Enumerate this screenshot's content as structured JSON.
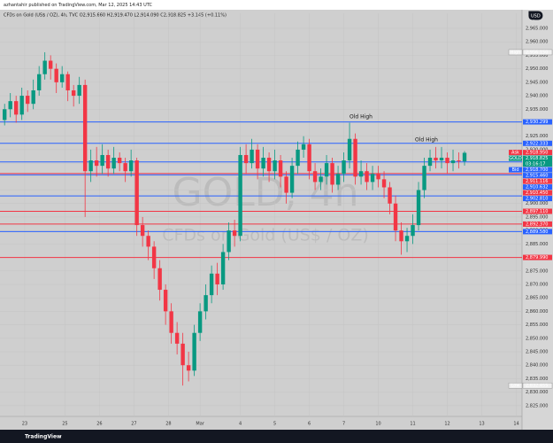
{
  "chart_data": {
    "type": "candlestick",
    "publisher_line": "azhantahir published on TradingView.com, Mar 12, 2025 14:43 UTC",
    "legend_line": "CFDs on Gold (US$ / OZ), 4h, TVC  O2,915.660 H2,919.470 L2,914.090 C2,918.825 +3.145 (+0.11%)",
    "watermark_symbol": "GOLD, 4h",
    "watermark_name": "CFDs on Gold (US$ / OZ)",
    "currency": "USD",
    "annotations": [
      "Old High",
      "Old High"
    ],
    "footer_brand": "TradingView",
    "up_color": "#089981",
    "down_color": "#f23645",
    "grid": true,
    "open": [
      2931,
      2935,
      2938,
      2933,
      2940,
      2937,
      2942,
      2948,
      2953,
      2950,
      2945,
      2948,
      2942,
      2940,
      2944,
      2912,
      2916,
      2914,
      2918,
      2913,
      2917,
      2915,
      2912,
      2916,
      2892,
      2888,
      2884,
      2876,
      2868,
      2860,
      2852,
      2848,
      2840,
      2838,
      2852,
      2860,
      2866,
      2874,
      2870,
      2882,
      2890,
      2888,
      2918,
      2915,
      2920,
      2913,
      2917,
      2912,
      2916,
      2910,
      2904,
      2914,
      2920,
      2922,
      2912,
      2908,
      2910,
      2915,
      2907,
      2911,
      2916,
      2924,
      2910,
      2912,
      2908,
      2911,
      2909,
      2906,
      2900,
      2890,
      2886,
      2888,
      2892,
      2905,
      2914,
      2917,
      2916,
      2917,
      2915,
      2916,
      2915.66
    ],
    "high": [
      2937,
      2941,
      2940,
      2943,
      2942,
      2946,
      2951,
      2956.15,
      2955,
      2952,
      2951,
      2949,
      2944,
      2947,
      2946,
      2920,
      2921,
      2922,
      2920,
      2921,
      2919,
      2917,
      2920,
      2917,
      2895,
      2890,
      2886,
      2879,
      2870,
      2863,
      2856,
      2852,
      2845,
      2855,
      2863,
      2870,
      2877,
      2878,
      2885,
      2893,
      2894,
      2921,
      2922,
      2924,
      2922,
      2921,
      2919,
      2920,
      2918,
      2912,
      2917,
      2923,
      2925,
      2924,
      2915,
      2913,
      2918,
      2917,
      2914,
      2919,
      2930,
      2926,
      2916,
      2915,
      2914,
      2914,
      2912,
      2908,
      2903,
      2893,
      2891,
      2896,
      2908,
      2917,
      2920,
      2921,
      2921,
      2919,
      2920,
      2919,
      2919.47
    ],
    "low": [
      2929,
      2932,
      2930,
      2931,
      2934,
      2935,
      2940,
      2946,
      2946,
      2941,
      2943,
      2938,
      2936,
      2937,
      2895,
      2908,
      2910,
      2911,
      2910,
      2911,
      2912,
      2908,
      2910,
      2888,
      2884,
      2879,
      2872,
      2864,
      2855,
      2848,
      2844,
      2832.455,
      2834,
      2836,
      2849,
      2857,
      2863,
      2866,
      2868,
      2879,
      2884,
      2886,
      2911,
      2913,
      2909,
      2910,
      2908,
      2909,
      2906,
      2900,
      2902,
      2911,
      2917,
      2909,
      2905,
      2905,
      2907,
      2904,
      2905,
      2908,
      2913,
      2907,
      2907,
      2905,
      2905,
      2906,
      2902,
      2896,
      2886,
      2881,
      2882,
      2885,
      2890,
      2902,
      2912,
      2913,
      2913,
      2911,
      2912,
      2913,
      2914.09
    ],
    "close": [
      2935,
      2938,
      2933,
      2940,
      2937,
      2942,
      2948,
      2953,
      2950,
      2945,
      2948,
      2942,
      2940,
      2944,
      2912,
      2916,
      2914,
      2918,
      2913,
      2917,
      2915,
      2912,
      2916,
      2892,
      2888,
      2884,
      2876,
      2868,
      2860,
      2852,
      2848,
      2840,
      2838,
      2852,
      2860,
      2866,
      2874,
      2870,
      2882,
      2890,
      2888,
      2918,
      2915,
      2920,
      2913,
      2917,
      2912,
      2916,
      2910,
      2904,
      2914,
      2920,
      2922,
      2912,
      2908,
      2910,
      2915,
      2907,
      2911,
      2916,
      2924,
      2910,
      2912,
      2908,
      2911,
      2909,
      2906,
      2900,
      2890,
      2886,
      2888,
      2892,
      2905,
      2914,
      2917,
      2916,
      2917,
      2915,
      2916,
      2915.66,
      2918.825
    ],
    "xlim": [
      -0.8,
      90
    ],
    "xticks": [
      {
        "value": 3.5,
        "label": "23"
      },
      {
        "value": 10.5,
        "label": "25"
      },
      {
        "value": 16.5,
        "label": "26"
      },
      {
        "value": 22.5,
        "label": "27"
      },
      {
        "value": 28.5,
        "label": "28"
      },
      {
        "value": 34,
        "label": "Mar"
      },
      {
        "value": 41,
        "label": "4"
      },
      {
        "value": 47,
        "label": "5"
      },
      {
        "value": 53,
        "label": "6"
      },
      {
        "value": 59,
        "label": "7"
      },
      {
        "value": 65,
        "label": "10"
      },
      {
        "value": 71,
        "label": "11"
      },
      {
        "value": 77,
        "label": "12"
      },
      {
        "value": 83,
        "label": "13"
      },
      {
        "value": 89,
        "label": "14"
      }
    ],
    "ylim": [
      2821,
      2970.6
    ],
    "yticks": [
      {
        "value": 2825,
        "label": "2,825.000"
      },
      {
        "value": 2830,
        "label": "2,830.000"
      },
      {
        "value": 2835,
        "label": "2,835.000"
      },
      {
        "value": 2840,
        "label": "2,840.000"
      },
      {
        "value": 2845,
        "label": "2,845.000"
      },
      {
        "value": 2850,
        "label": "2,850.000"
      },
      {
        "value": 2855,
        "label": "2,855.000"
      },
      {
        "value": 2860,
        "label": "2,860.000"
      },
      {
        "value": 2865,
        "label": "2,865.000"
      },
      {
        "value": 2870,
        "label": "2,870.000"
      },
      {
        "value": 2875,
        "label": "2,875.000"
      },
      {
        "value": 2880,
        "label": "2,880.000"
      },
      {
        "value": 2885,
        "label": "2,885.000"
      },
      {
        "value": 2890,
        "label": "2,890.000"
      },
      {
        "value": 2895,
        "label": "2,895.000"
      },
      {
        "value": 2900,
        "label": "2,900.000"
      },
      {
        "value": 2905,
        "label": "2,905.000"
      },
      {
        "value": 2910,
        "label": "2,910.000"
      },
      {
        "value": 2915,
        "label": "2,915.000"
      },
      {
        "value": 2920,
        "label": "2,920.000"
      },
      {
        "value": 2925,
        "label": "2,925.000"
      },
      {
        "value": 2930,
        "label": "2,930.000"
      },
      {
        "value": 2935,
        "label": "2,935.000"
      },
      {
        "value": 2940,
        "label": "2,940.000"
      },
      {
        "value": 2945,
        "label": "2,945.000"
      },
      {
        "value": 2950,
        "label": "2,950.000"
      },
      {
        "value": 2955,
        "label": "2,955.000"
      },
      {
        "value": 2960,
        "label": "2,960.000"
      },
      {
        "value": 2965,
        "label": "2,965.000"
      }
    ],
    "price_tags": [
      {
        "prefix": "High",
        "label": "2,956.150",
        "value": 2956.15,
        "color": "#f0f0f0"
      },
      {
        "label": "2,930.299",
        "value": 2930.299,
        "color": "#2962ff",
        "line": true
      },
      {
        "label": "2,922.333",
        "value": 2922.333,
        "color": "#2962ff",
        "line": true
      },
      {
        "prefix": "Ask",
        "label": "2,918.950",
        "value": 2918.95,
        "color": "#f23645"
      },
      {
        "prefix": "GOLD",
        "label": "2,918.825",
        "value": 2918.825,
        "color": "#089981",
        "countdown": "03:16:17"
      },
      {
        "prefix": "Bid",
        "label": "2,918.700",
        "value": 2918.7,
        "color": "#2962ff"
      },
      {
        "label": "2,915.460",
        "value": 2915.46,
        "color": "#2962ff",
        "line": true
      },
      {
        "label": "2,911.116",
        "value": 2911.116,
        "color": "#f23645",
        "line": true
      },
      {
        "label": "2,910.632",
        "value": 2910.632,
        "color": "#2962ff",
        "line": true
      },
      {
        "label": "2,910.450",
        "value": 2910.45,
        "color": "#f23645"
      },
      {
        "label": "2,902.810",
        "value": 2902.81,
        "color": "#2962ff",
        "line": true
      },
      {
        "label": "2,897.110",
        "value": 2897.11,
        "color": "#f23645",
        "line": true
      },
      {
        "label": "2,892.370",
        "value": 2892.37,
        "color": "#f23645",
        "line": true
      },
      {
        "label": "2,889.580",
        "value": 2889.58,
        "color": "#2962ff",
        "line": true
      },
      {
        "label": "2,879.990",
        "value": 2879.99,
        "color": "#f23645",
        "line": true
      },
      {
        "prefix": "Low",
        "label": "2,832.455",
        "value": 2832.455,
        "color": "#f0f0f0"
      }
    ]
  }
}
